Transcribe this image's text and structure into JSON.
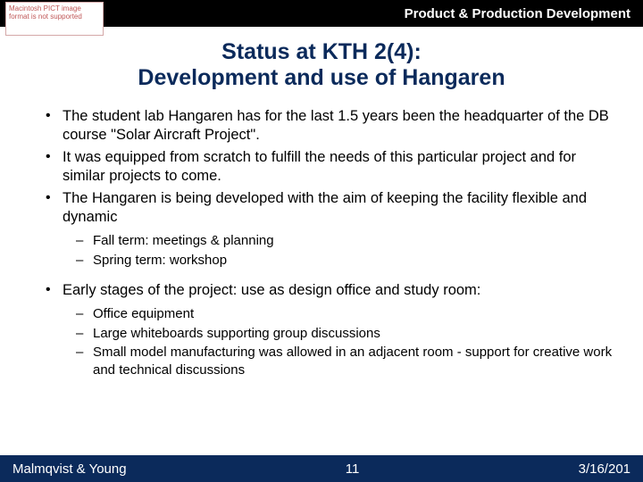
{
  "header": {
    "pict_text": "Macintosh PICT image format is not supported",
    "department": "Product & Production Development"
  },
  "title_line1": "Status at KTH 2(4):",
  "title_line2": "Development and use of Hangaren",
  "bullets": {
    "b1": "The student lab Hangaren has for the last 1.5 years been the headquarter of the DB course \"Solar Aircraft Project\".",
    "b2": "It was equipped from scratch to fulfill the needs of this particular project and for similar projects to come.",
    "b3": "The Hangaren is being developed with the aim of keeping the facility flexible and dynamic",
    "b3_sub1": "Fall term: meetings & planning",
    "b3_sub2": "Spring term: workshop",
    "b4": "Early stages of the project: use as design office and study room:",
    "b4_sub1": "Office equipment",
    "b4_sub2": "Large whiteboards supporting group discussions",
    "b4_sub3": "Small model manufacturing was allowed in an adjacent room - support for creative work and technical discussions"
  },
  "footer": {
    "authors": "Malmqvist & Young",
    "page": "11",
    "date": "3/16/201"
  },
  "colors": {
    "header_bg": "#000000",
    "title_color": "#0b2a5b",
    "footer_bg": "#0b2a5b",
    "text_color": "#000000",
    "footer_text": "#ffffff",
    "pict_border": "#d4a8a8",
    "pict_text": "#c05858"
  },
  "typography": {
    "title_fontsize": 25,
    "body_fontsize": 16.5,
    "sub_fontsize": 15,
    "header_fontsize": 15,
    "footer_fontsize": 15,
    "font_family": "Arial"
  }
}
